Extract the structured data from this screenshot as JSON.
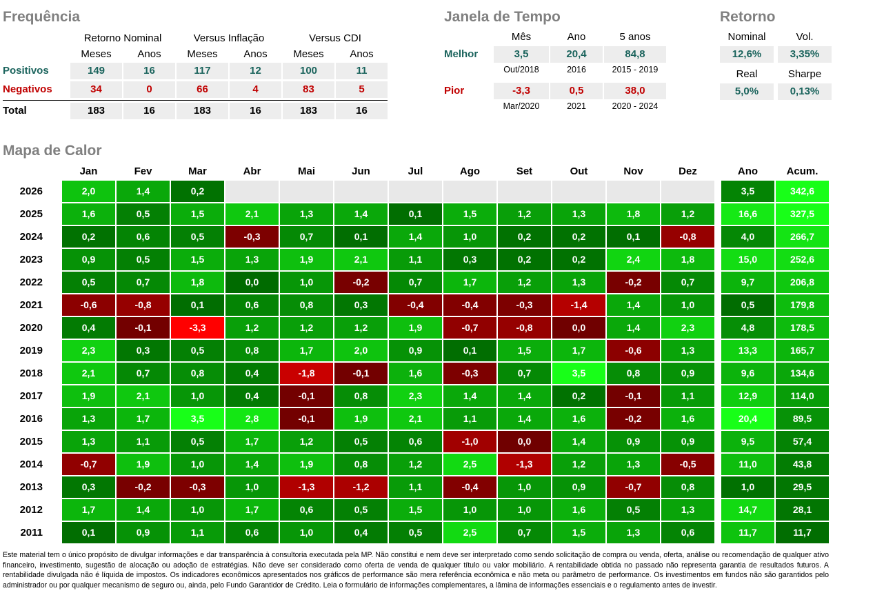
{
  "colors": {
    "title_gray": "#808080",
    "positive_teal": "#1A635C",
    "negative_red": "#C00000",
    "stat_cell_bg": "#EDEDED",
    "empty_cell_bg": "#E8E8E8"
  },
  "frequencia": {
    "title": "Frequência",
    "groups": [
      "Retorno Nominal",
      "Versus Inflação",
      "Versus CDI"
    ],
    "subheaders": [
      "Meses",
      "Anos",
      "Meses",
      "Anos",
      "Meses",
      "Anos"
    ],
    "rows": [
      {
        "label": "Positivos",
        "values": [
          149,
          16,
          117,
          12,
          100,
          11
        ]
      },
      {
        "label": "Negativos",
        "values": [
          34,
          0,
          66,
          4,
          83,
          5
        ]
      },
      {
        "label": "Total",
        "values": [
          183,
          16,
          183,
          16,
          183,
          16
        ]
      }
    ]
  },
  "janela": {
    "title": "Janela de Tempo",
    "headers": [
      "Mês",
      "Ano",
      "5 anos"
    ],
    "rows": [
      {
        "label": "Melhor",
        "values": [
          "3,5",
          "20,4",
          "84,8"
        ],
        "periods": [
          "Out/2018",
          "2016",
          "2015 - 2019"
        ]
      },
      {
        "label": "Pior",
        "values": [
          "-3,3",
          "0,5",
          "38,0"
        ],
        "periods": [
          "Mar/2020",
          "2021",
          "2020 - 2024"
        ]
      }
    ]
  },
  "retorno": {
    "title": "Retorno",
    "cells": [
      {
        "label": "Nominal",
        "value": "12,6%"
      },
      {
        "label": "Vol.",
        "value": "3,35%"
      },
      {
        "label": "Real",
        "value": "5,0%"
      },
      {
        "label": "Sharpe",
        "value": "0,13%"
      }
    ]
  },
  "chart_data": {
    "type": "heatmap",
    "title": "Mapa de Calor",
    "columns": [
      "Jan",
      "Fev",
      "Mar",
      "Abr",
      "Mai",
      "Jun",
      "Jul",
      "Ago",
      "Set",
      "Out",
      "Nov",
      "Dez"
    ],
    "extra_columns": [
      "Ano",
      "Acum."
    ],
    "value_format": "percent, pt-BR decimal comma, 1 decimal",
    "scales": {
      "month_max": 3.5,
      "month_min": -3.3,
      "ano_max": 20.4,
      "acum_max": 342.6
    },
    "color_scale": {
      "positive_dark": "#016D01",
      "positive_bright": "#18FF18",
      "negative_dark": "#700000",
      "negative_bright": "#FF0000",
      "empty": "#E8E8E8",
      "note_colors": "magnitude maps to brightness; near-zero is darkest"
    },
    "rows": [
      {
        "year": 2026,
        "months": [
          2.0,
          1.4,
          0.2,
          null,
          null,
          null,
          null,
          null,
          null,
          null,
          null,
          null
        ],
        "ano": 3.5,
        "acum": 342.6
      },
      {
        "year": 2025,
        "months": [
          1.6,
          0.5,
          1.5,
          2.1,
          1.3,
          1.4,
          0.1,
          1.5,
          1.2,
          1.3,
          1.8,
          1.2
        ],
        "ano": 16.6,
        "acum": 327.5
      },
      {
        "year": 2024,
        "months": [
          0.2,
          0.6,
          0.5,
          -0.3,
          0.7,
          0.1,
          1.4,
          1.0,
          0.2,
          0.2,
          0.1,
          -0.8
        ],
        "ano": 4.0,
        "acum": 266.7
      },
      {
        "year": 2023,
        "months": [
          0.9,
          0.5,
          1.5,
          1.3,
          1.9,
          2.1,
          1.1,
          0.3,
          0.2,
          0.2,
          2.4,
          1.8
        ],
        "ano": 15.0,
        "acum": 252.6
      },
      {
        "year": 2022,
        "months": [
          0.5,
          0.7,
          1.8,
          0.04,
          1.0,
          -0.2,
          0.7,
          1.7,
          1.2,
          1.3,
          -0.2,
          0.7
        ],
        "ano": 9.7,
        "acum": 206.8
      },
      {
        "year": 2021,
        "months": [
          -0.6,
          -0.8,
          0.1,
          0.6,
          0.8,
          0.3,
          -0.4,
          -0.4,
          -0.3,
          -1.4,
          1.4,
          1.0
        ],
        "ano": 0.5,
        "acum": 179.8
      },
      {
        "year": 2020,
        "months": [
          0.4,
          -0.1,
          -3.3,
          1.2,
          1.2,
          1.2,
          1.9,
          -0.7,
          -0.8,
          -0.04,
          1.4,
          2.3
        ],
        "ano": 4.8,
        "acum": 178.5
      },
      {
        "year": 2019,
        "months": [
          2.3,
          0.3,
          0.5,
          0.8,
          1.7,
          2.0,
          0.9,
          0.1,
          1.5,
          1.7,
          -0.6,
          1.3
        ],
        "ano": 13.3,
        "acum": 165.7
      },
      {
        "year": 2018,
        "months": [
          2.1,
          0.7,
          0.8,
          0.4,
          -1.8,
          -0.1,
          1.6,
          -0.3,
          0.7,
          3.5,
          0.8,
          0.9
        ],
        "ano": 9.6,
        "acum": 134.6
      },
      {
        "year": 2017,
        "months": [
          1.9,
          2.1,
          1.0,
          0.4,
          -0.1,
          0.8,
          2.3,
          1.4,
          1.4,
          0.2,
          -0.1,
          1.1
        ],
        "ano": 12.9,
        "acum": 114.0
      },
      {
        "year": 2016,
        "months": [
          1.3,
          1.7,
          3.5,
          2.8,
          -0.1,
          1.9,
          2.1,
          1.1,
          1.4,
          1.6,
          -0.2,
          1.6
        ],
        "ano": 20.4,
        "acum": 89.5
      },
      {
        "year": 2015,
        "months": [
          1.3,
          1.1,
          0.5,
          1.7,
          1.2,
          0.5,
          0.6,
          -1.0,
          -0.04,
          1.4,
          0.9,
          0.9
        ],
        "ano": 9.5,
        "acum": 57.4
      },
      {
        "year": 2014,
        "months": [
          -0.7,
          1.9,
          1.0,
          1.4,
          1.9,
          0.8,
          1.2,
          2.5,
          -1.3,
          1.2,
          1.3,
          -0.5
        ],
        "ano": 11.0,
        "acum": 43.8
      },
      {
        "year": 2013,
        "months": [
          0.3,
          -0.2,
          -0.3,
          1.0,
          -1.3,
          -1.2,
          1.1,
          -0.4,
          1.0,
          0.9,
          -0.7,
          0.8
        ],
        "ano": 1.0,
        "acum": 29.5
      },
      {
        "year": 2012,
        "months": [
          1.7,
          1.4,
          1.0,
          1.7,
          0.6,
          0.5,
          1.5,
          1.0,
          1.0,
          1.6,
          0.5,
          1.3
        ],
        "ano": 14.7,
        "acum": 28.1
      },
      {
        "year": 2011,
        "months": [
          0.1,
          0.9,
          1.1,
          0.6,
          1.0,
          0.4,
          0.5,
          2.5,
          0.7,
          1.5,
          1.3,
          0.6
        ],
        "ano": 11.7,
        "acum": 11.7
      }
    ]
  },
  "disclaimer": "Este material tem o único propósito de divulgar informações e dar transparência à consultoria executada pela MP. Não constitui e nem deve ser interpretado como sendo solicitação de compra ou venda, oferta, análise ou recomendação de qualquer ativo financeiro, investimento, sugestão de alocação ou adoção de estratégias. Não deve ser considerado como oferta de venda de qualquer título ou valor mobiliário. A rentabilidade obtida no passado não representa garantia de resultados futuros. A rentabilidade divulgada não é líquida de impostos. Os indicadores econômicos apresentados nos gráficos de performance são mera referência econômica e não meta ou parâmetro de performance. Os investimentos em fundos não são garantidos pelo administrador ou por qualquer mecanismo de seguro ou, ainda, pelo Fundo Garantidor de Crédito. Leia o formulário de informações complementares, a lâmina de informações essenciais e o regulamento antes de investir."
}
